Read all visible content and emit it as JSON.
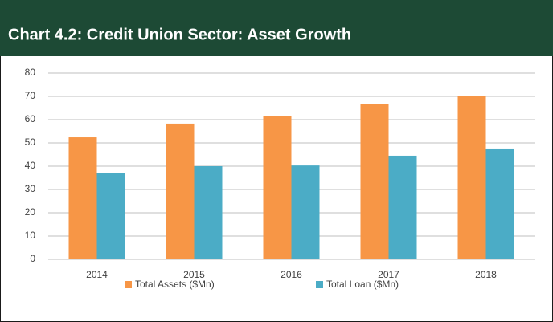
{
  "chart_data": {
    "type": "bar",
    "title": "Chart 4.2: Credit Union Sector: Asset Growth",
    "categories": [
      "2014",
      "2015",
      "2016",
      "2017",
      "2018"
    ],
    "series": [
      {
        "name": "Total Assets ($Mn)",
        "color": "#f79646",
        "values": [
          52.4,
          58.3,
          61.4,
          66.6,
          70.3
        ]
      },
      {
        "name": "Total Loan ($Mn)",
        "color": "#4bacc6",
        "values": [
          37.2,
          40,
          40.3,
          44.5,
          47.6
        ]
      }
    ],
    "ylim": [
      0,
      80
    ],
    "yticks": [
      0,
      10,
      20,
      30,
      40,
      50,
      60,
      70,
      80
    ],
    "grid": true,
    "legend": "bottom"
  }
}
